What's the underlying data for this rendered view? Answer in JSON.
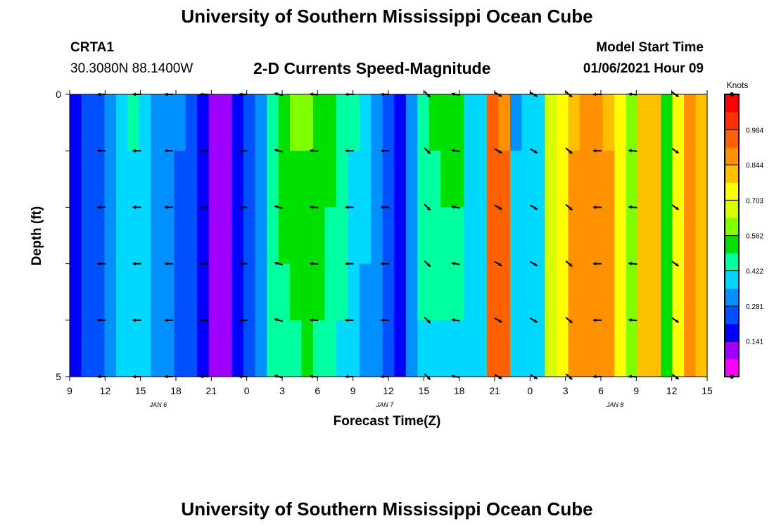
{
  "header": {
    "title": "University of Southern Mississippi Ocean Cube",
    "station_id": "CRTA1",
    "coordinates": "30.3080N 88.1400W",
    "subtitle": "2-D Currents Speed-Magnitude",
    "model_start_label": "Model Start Time",
    "model_start_value": "01/06/2021 Hour 09"
  },
  "footer": {
    "title": "University of Southern Mississippi Ocean Cube"
  },
  "chart_data": {
    "type": "heatmap",
    "title": "2-D Currents Speed-Magnitude",
    "xlabel": "Forecast Time(Z)",
    "ylabel": "Depth (ft)",
    "y_ticks": [
      "0",
      "5"
    ],
    "ylim": [
      0,
      5
    ],
    "x_tick_labels": [
      "9",
      "12",
      "15",
      "18",
      "21",
      "0",
      "3",
      "6",
      "9",
      "12",
      "15",
      "18",
      "21",
      "0",
      "3",
      "6",
      "9",
      "12",
      "15"
    ],
    "date_labels": [
      {
        "text": "JAN  6",
        "tick_index": 2.5
      },
      {
        "text": "JAN  7",
        "tick_index": 8.9
      },
      {
        "text": "JAN  8",
        "tick_index": 15.4
      }
    ],
    "colorbar": {
      "unit": "Knots",
      "range": [
        0.0,
        1.125
      ],
      "tick_labels": [
        "0.141",
        "0.281",
        "0.422",
        "0.562",
        "0.703",
        "0.844",
        "0.984"
      ],
      "colors": [
        "#ff00ff",
        "#a000ff",
        "#0000ff",
        "#0050ff",
        "#0090ff",
        "#00d8ff",
        "#00ffa0",
        "#00e000",
        "#80ff00",
        "#d8ff00",
        "#ffff00",
        "#ffc000",
        "#ff9000",
        "#ff6000",
        "#ff3000",
        "#ff0000"
      ]
    },
    "time_hours": [
      9,
      10,
      11,
      12,
      13,
      14,
      15,
      16,
      17,
      18,
      19,
      20,
      21,
      22,
      23,
      24,
      25,
      26,
      27,
      28,
      29,
      30,
      31,
      32,
      33,
      34,
      35,
      36,
      37,
      38,
      39,
      40,
      41,
      42,
      43,
      44,
      45,
      46,
      47,
      48,
      49,
      50,
      51,
      52,
      53,
      54,
      55,
      56,
      57,
      58,
      59,
      60,
      61,
      62,
      63
    ],
    "depth_levels": [
      0,
      1,
      2,
      3,
      4
    ],
    "speed_knots": [
      [
        0.18,
        0.23,
        0.27,
        0.34,
        0.39,
        0.43,
        0.39,
        0.33,
        0.31,
        0.29,
        0.26,
        0.21,
        0.14,
        0.12,
        0.18,
        0.25,
        0.34,
        0.45,
        0.53,
        0.57,
        0.58,
        0.56,
        0.52,
        0.47,
        0.43,
        0.38,
        0.32,
        0.26,
        0.21,
        0.32,
        0.44,
        0.52,
        0.56,
        0.55,
        0.41,
        0.38,
        0.96,
        0.9,
        0.35,
        0.4,
        0.42,
        0.64,
        0.74,
        0.84,
        0.88,
        0.9,
        0.84,
        0.72,
        0.62,
        0.82,
        0.82,
        0.56,
        0.74,
        0.86,
        0.81
      ],
      [
        0.18,
        0.23,
        0.27,
        0.33,
        0.38,
        0.42,
        0.38,
        0.33,
        0.3,
        0.28,
        0.25,
        0.2,
        0.14,
        0.12,
        0.18,
        0.25,
        0.34,
        0.44,
        0.51,
        0.54,
        0.55,
        0.53,
        0.5,
        0.46,
        0.42,
        0.37,
        0.31,
        0.26,
        0.21,
        0.31,
        0.44,
        0.49,
        0.51,
        0.5,
        0.39,
        0.39,
        0.96,
        0.96,
        0.36,
        0.4,
        0.42,
        0.64,
        0.76,
        0.86,
        0.9,
        0.9,
        0.85,
        0.72,
        0.62,
        0.82,
        0.82,
        0.56,
        0.74,
        0.86,
        0.81
      ],
      [
        0.18,
        0.23,
        0.27,
        0.33,
        0.38,
        0.42,
        0.38,
        0.33,
        0.3,
        0.28,
        0.25,
        0.2,
        0.13,
        0.12,
        0.18,
        0.25,
        0.34,
        0.44,
        0.5,
        0.53,
        0.53,
        0.52,
        0.49,
        0.45,
        0.41,
        0.36,
        0.31,
        0.25,
        0.2,
        0.31,
        0.43,
        0.46,
        0.47,
        0.47,
        0.38,
        0.4,
        0.96,
        0.96,
        0.36,
        0.4,
        0.42,
        0.64,
        0.76,
        0.86,
        0.9,
        0.9,
        0.85,
        0.72,
        0.62,
        0.82,
        0.82,
        0.56,
        0.74,
        0.86,
        0.81
      ],
      [
        0.18,
        0.23,
        0.27,
        0.33,
        0.38,
        0.42,
        0.38,
        0.33,
        0.3,
        0.28,
        0.25,
        0.2,
        0.13,
        0.12,
        0.18,
        0.25,
        0.34,
        0.44,
        0.49,
        0.51,
        0.52,
        0.5,
        0.48,
        0.44,
        0.4,
        0.35,
        0.3,
        0.25,
        0.2,
        0.31,
        0.43,
        0.44,
        0.44,
        0.44,
        0.38,
        0.4,
        0.96,
        0.96,
        0.36,
        0.4,
        0.42,
        0.64,
        0.76,
        0.86,
        0.9,
        0.9,
        0.85,
        0.72,
        0.62,
        0.82,
        0.82,
        0.56,
        0.74,
        0.86,
        0.81
      ],
      [
        0.17,
        0.22,
        0.26,
        0.32,
        0.37,
        0.41,
        0.37,
        0.32,
        0.29,
        0.27,
        0.24,
        0.19,
        0.12,
        0.11,
        0.17,
        0.24,
        0.33,
        0.43,
        0.47,
        0.49,
        0.5,
        0.48,
        0.46,
        0.42,
        0.38,
        0.34,
        0.29,
        0.24,
        0.19,
        0.3,
        0.38,
        0.36,
        0.36,
        0.37,
        0.37,
        0.4,
        0.96,
        0.96,
        0.36,
        0.4,
        0.42,
        0.64,
        0.76,
        0.86,
        0.9,
        0.9,
        0.85,
        0.72,
        0.62,
        0.82,
        0.82,
        0.56,
        0.74,
        0.86,
        0.81
      ]
    ],
    "arrows": {
      "row_depths": [
        0,
        1,
        2,
        3,
        4,
        5
      ],
      "columns": [
        {
          "tick_pos": 0.9,
          "direction_deg": 180
        },
        {
          "tick_pos": 1.9,
          "direction_deg": 180
        },
        {
          "tick_pos": 2.8,
          "direction_deg": 180
        },
        {
          "tick_pos": 3.8,
          "direction_deg": 180
        },
        {
          "tick_pos": 4.9,
          "direction_deg": 180
        },
        {
          "tick_pos": 5.9,
          "direction_deg": 165
        },
        {
          "tick_pos": 6.9,
          "direction_deg": 175
        },
        {
          "tick_pos": 7.9,
          "direction_deg": 180
        },
        {
          "tick_pos": 8.9,
          "direction_deg": 180
        },
        {
          "tick_pos": 10.1,
          "direction_deg": -45
        },
        {
          "tick_pos": 10.9,
          "direction_deg": 170
        },
        {
          "tick_pos": 12.1,
          "direction_deg": -30
        },
        {
          "tick_pos": 13.1,
          "direction_deg": -30
        },
        {
          "tick_pos": 14.1,
          "direction_deg": -40
        },
        {
          "tick_pos": 14.9,
          "direction_deg": 180
        },
        {
          "tick_pos": 15.9,
          "direction_deg": 175
        },
        {
          "tick_pos": 17.1,
          "direction_deg": -35
        }
      ]
    }
  }
}
